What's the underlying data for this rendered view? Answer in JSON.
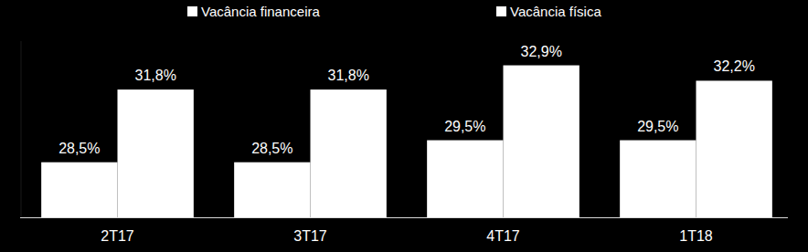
{
  "chart_data": {
    "type": "bar",
    "categories": [
      "2T17",
      "3T17",
      "4T17",
      "1T18"
    ],
    "series": [
      {
        "name": "Vacância financeira",
        "color": "#ffffff",
        "values": [
          28.5,
          28.5,
          29.5,
          29.5
        ],
        "value_labels": [
          "28,5%",
          "28,5%",
          "29,5%",
          "29,5%"
        ]
      },
      {
        "name": "Vacância física",
        "color": "#ffffff",
        "values": [
          31.8,
          31.8,
          32.9,
          32.2
        ],
        "value_labels": [
          "31,8%",
          "31,8%",
          "32,9%",
          "32,2%"
        ]
      }
    ],
    "ylim": [
      26,
      34
    ],
    "grid": false,
    "legend": "top",
    "data_labels": true,
    "tick_labels": "x"
  }
}
